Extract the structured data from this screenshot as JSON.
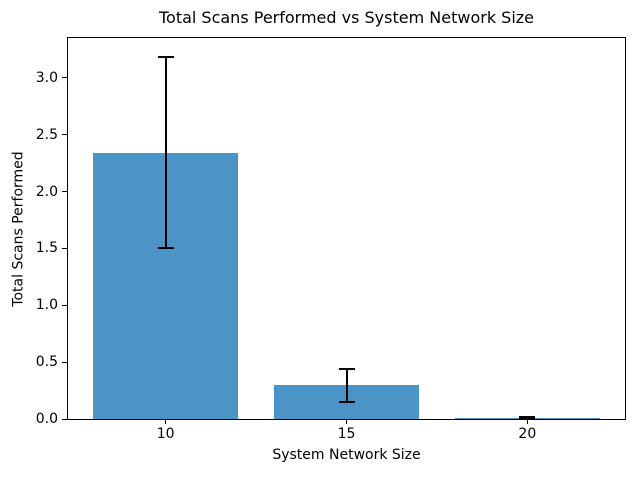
{
  "chart_data": {
    "type": "bar",
    "title": "Total Scans Performed vs System Network Size",
    "xlabel": "System Network Size",
    "ylabel": "Total Scans Performed",
    "categories": [
      "10",
      "15",
      "20"
    ],
    "values": [
      2.34,
      0.3,
      0.01
    ],
    "error_low": [
      1.5,
      0.15,
      0.0
    ],
    "error_high": [
      3.18,
      0.44,
      0.02
    ],
    "yticks": [
      0.0,
      0.5,
      1.0,
      1.5,
      2.0,
      2.5,
      3.0
    ],
    "ylim": [
      0,
      3.35
    ],
    "xlim": [
      -0.54,
      2.54
    ],
    "bar_width": 0.8,
    "grid": false,
    "legend_position": "none",
    "colors": {
      "bar": "#4C94C6",
      "error": "#000000",
      "spine": "#000000",
      "text": "#000000",
      "background": "#FFFFFF"
    }
  }
}
